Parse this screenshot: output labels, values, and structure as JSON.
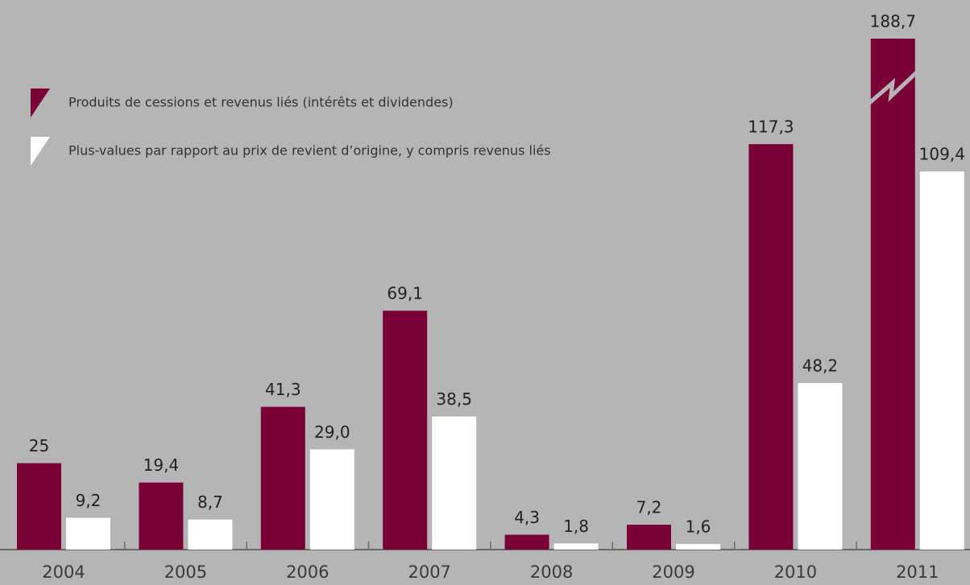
{
  "chart_data": {
    "type": "bar",
    "categories": [
      "2004",
      "2005",
      "2006",
      "2007",
      "2008",
      "2009",
      "2010",
      "2011"
    ],
    "series": [
      {
        "name": "Produits de cessions et revenus liés (intérêts et dividendes)",
        "color": "#7a0038",
        "values": [
          25,
          19.4,
          41.3,
          69.1,
          4.3,
          7.2,
          117.3,
          188.7
        ],
        "value_labels": [
          "25",
          "19,4",
          "41,3",
          "69,1",
          "4,3",
          "7,2",
          "117,3",
          "188,7"
        ]
      },
      {
        "name": "Plus-values par rapport au prix de revient d’origine, y compris revenus liés",
        "color": "#ffffff",
        "values": [
          9.2,
          8.7,
          29.0,
          38.5,
          1.8,
          1.6,
          48.2,
          109.4
        ],
        "value_labels": [
          "9,2",
          "8,7",
          "29,0",
          "38,5",
          "1,8",
          "1,6",
          "48,2",
          "109,4"
        ]
      }
    ],
    "ylim": [
      0,
      159
    ],
    "legend": "top-left"
  }
}
